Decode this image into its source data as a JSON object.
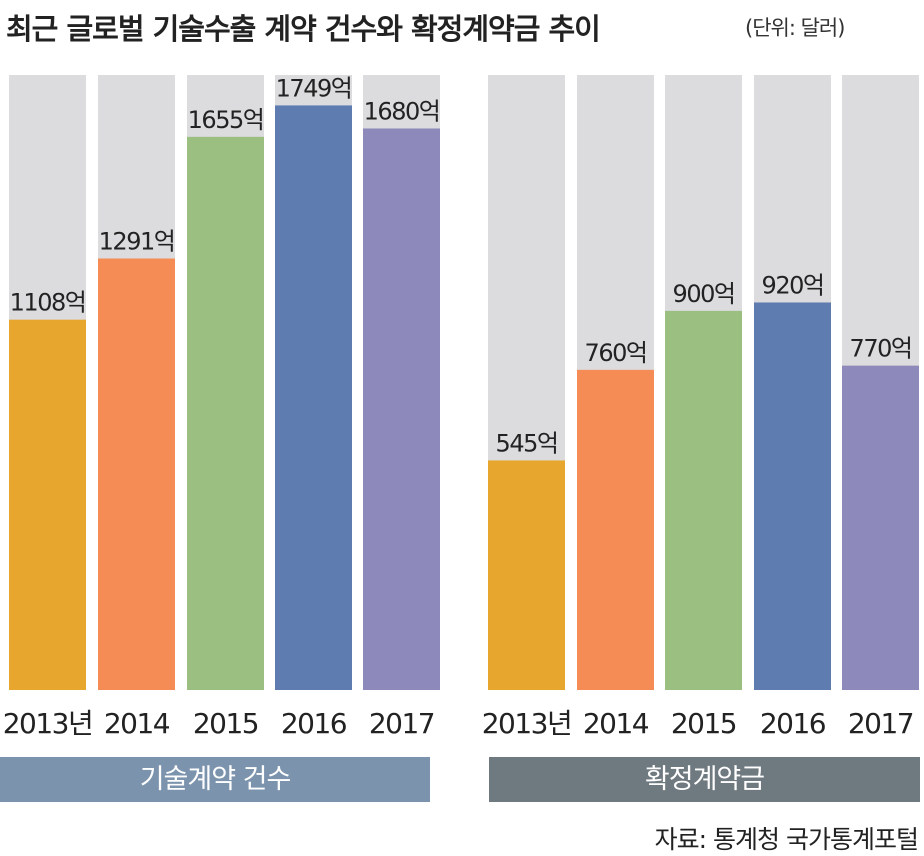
{
  "title": "최근 글로벌 기술수출 계약 건수와 확정계약금 추이",
  "unit": "(단위: 달러)",
  "source": "자료: 통계청 국가통계포털",
  "colors": {
    "background_bar": "#dcdcdf",
    "2013": "#e7a72e",
    "2014": "#f58c55",
    "2015": "#9bbf81",
    "2016": "#5e7cb0",
    "2017": "#8e89bb",
    "panel_left": "#7b93ad",
    "panel_right": "#6f7980"
  },
  "chart_data": [
    {
      "type": "bar",
      "title": "기술계약 건수",
      "categories": [
        "2013년",
        "2014",
        "2015",
        "2016",
        "2017"
      ],
      "values": [
        1108,
        1291,
        1655,
        1749,
        1680
      ],
      "data_labels": [
        "1108억",
        "1291억",
        "1655억",
        "1749억",
        "1680억"
      ],
      "ylim": [
        0,
        1840
      ]
    },
    {
      "type": "bar",
      "title": "확정계약금",
      "categories": [
        "2013년",
        "2014",
        "2015",
        "2016",
        "2017"
      ],
      "values": [
        545,
        760,
        900,
        920,
        770
      ],
      "data_labels": [
        "545억",
        "760억",
        "900억",
        "920억",
        "770억"
      ],
      "ylim": [
        0,
        1460
      ]
    }
  ]
}
